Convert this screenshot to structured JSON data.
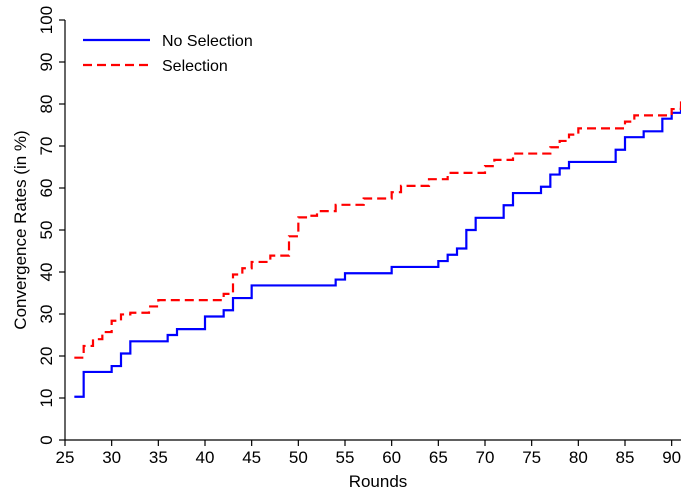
{
  "chart_data": {
    "type": "line",
    "step": true,
    "title": "",
    "xlabel": "Rounds",
    "ylabel": "Convergence Rates (in %)",
    "xlim": [
      25,
      91
    ],
    "ylim": [
      0,
      100
    ],
    "xticks": [
      25,
      30,
      35,
      40,
      45,
      50,
      55,
      60,
      65,
      70,
      75,
      80,
      85,
      90
    ],
    "yticks": [
      0,
      10,
      20,
      30,
      40,
      50,
      60,
      70,
      80,
      90,
      100
    ],
    "grid": false,
    "legend": "top-left",
    "series": [
      {
        "name": "No Selection",
        "color": "#0000ff",
        "dash": "solid",
        "x": [
          26,
          27,
          30,
          31,
          32,
          36,
          37,
          40,
          42,
          43,
          45,
          54,
          55,
          60,
          65,
          66,
          67,
          68,
          69,
          72,
          73,
          76,
          77,
          78,
          79,
          84,
          85,
          87,
          89,
          90,
          91
        ],
        "y": [
          10.3,
          16.2,
          17.6,
          20.6,
          23.5,
          25,
          26.4,
          29.4,
          30.9,
          33.8,
          36.8,
          38.2,
          39.7,
          41.2,
          42.6,
          44.1,
          45.6,
          50,
          52.9,
          55.9,
          58.8,
          60.3,
          63.2,
          64.7,
          66.2,
          69.1,
          72.1,
          73.5,
          76.5,
          77.9,
          79.4
        ]
      },
      {
        "name": "Selection",
        "color": "#ff0000",
        "dash": "dashed",
        "x": [
          26,
          27,
          28,
          29,
          30,
          31,
          32,
          34,
          35,
          42,
          43,
          44,
          45,
          47,
          49,
          50,
          51,
          52,
          54,
          57,
          60,
          61,
          64,
          66,
          70,
          71,
          73,
          77,
          78,
          79,
          80,
          85,
          86,
          90,
          91
        ],
        "y": [
          19.6,
          22.4,
          24,
          25.7,
          28.4,
          29.9,
          30.3,
          31.8,
          33.3,
          34.8,
          39.4,
          40.9,
          42.4,
          43.9,
          48.5,
          53,
          53.4,
          54.5,
          56,
          57.5,
          59,
          60.5,
          62.1,
          63.6,
          65.2,
          66.7,
          68.2,
          69.7,
          71.2,
          72.7,
          74.2,
          75.8,
          77.3,
          78.8,
          81.8
        ]
      }
    ]
  }
}
